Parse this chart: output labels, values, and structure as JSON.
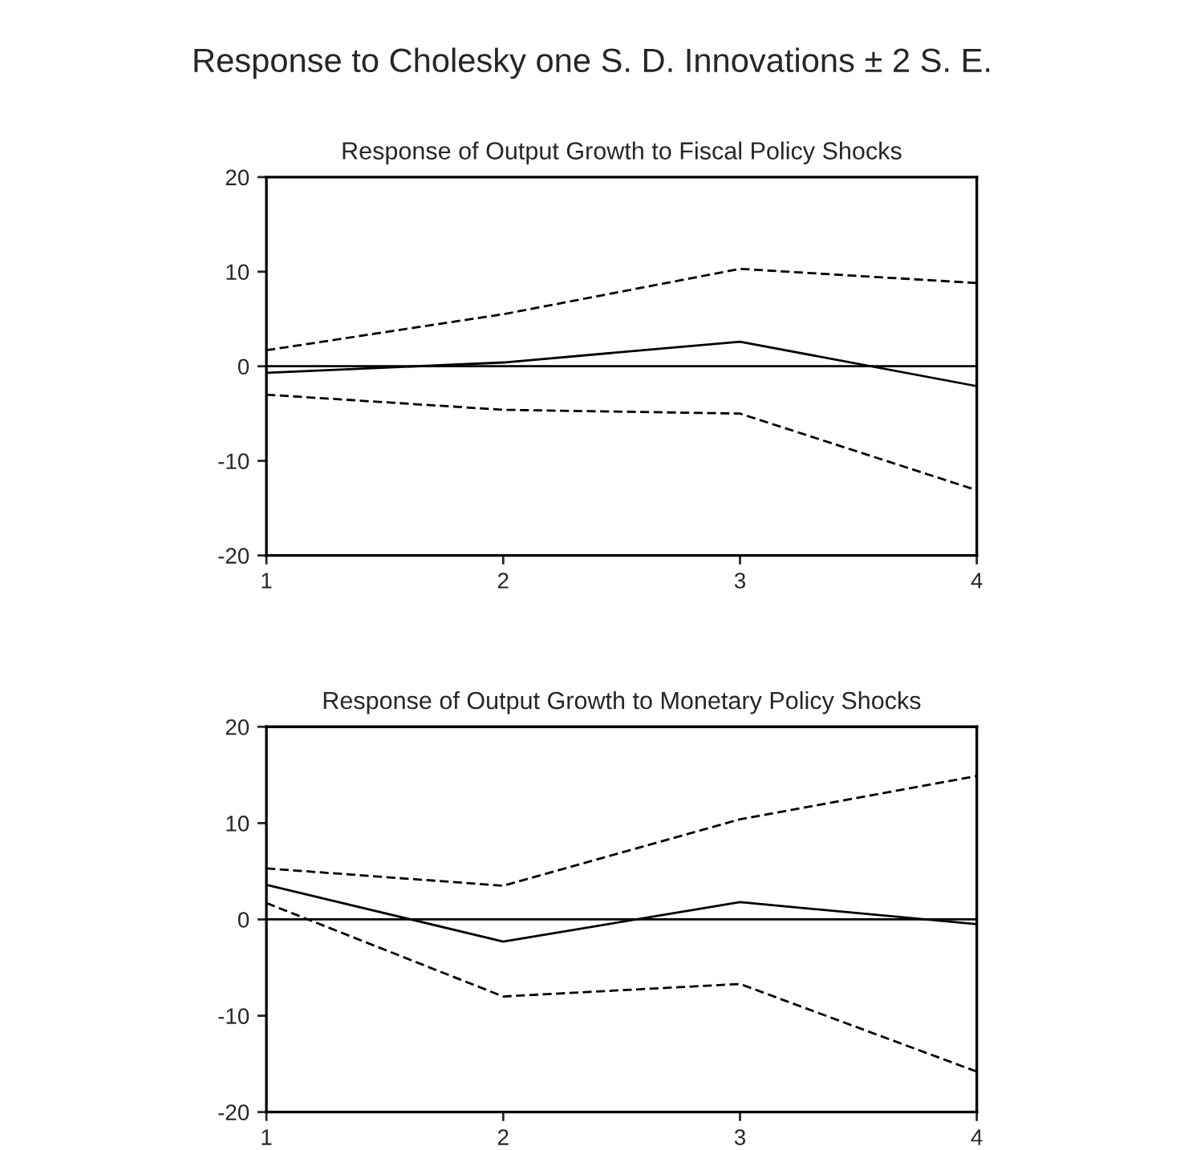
{
  "chart_data": [
    {
      "type": "line",
      "title": "Response of Output Growth to Fiscal Policy Shocks",
      "annotations": [
        "Response to Cholesky one S. D. Innovations ± 2 S. E."
      ],
      "x": [
        1,
        2,
        3,
        4
      ],
      "xlim": [
        1,
        4
      ],
      "xticks": [
        1,
        2,
        3,
        4
      ],
      "ylim": [
        -20,
        20
      ],
      "yticks": [
        -20,
        -10,
        0,
        10,
        20
      ],
      "grid": false,
      "ref_lines": [
        {
          "axis": "y",
          "value": 0,
          "color": "#000000"
        }
      ],
      "series": [
        {
          "color": "#000000",
          "line_style": "solid",
          "values": [
            -0.7,
            0.4,
            2.6,
            -2.1
          ]
        },
        {
          "color": "#000000",
          "line_style": "dashed",
          "values": [
            1.7,
            5.5,
            10.3,
            8.8
          ]
        },
        {
          "color": "#000000",
          "line_style": "dashed",
          "values": [
            -3.0,
            -4.6,
            -5.0,
            -13.1
          ]
        }
      ]
    },
    {
      "type": "line",
      "title": "Response of Output Growth to Monetary Policy Shocks",
      "x": [
        1,
        2,
        3,
        4
      ],
      "xlim": [
        1,
        4
      ],
      "xticks": [
        1,
        2,
        3,
        4
      ],
      "ylim": [
        -20,
        20
      ],
      "yticks": [
        -20,
        -10,
        0,
        10,
        20
      ],
      "grid": false,
      "ref_lines": [
        {
          "axis": "y",
          "value": 0,
          "color": "#000000"
        }
      ],
      "series": [
        {
          "color": "#000000",
          "line_style": "solid",
          "values": [
            3.6,
            -2.3,
            1.8,
            -0.5
          ]
        },
        {
          "color": "#000000",
          "line_style": "dashed",
          "values": [
            5.3,
            3.5,
            10.4,
            14.9
          ]
        },
        {
          "color": "#000000",
          "line_style": "dashed",
          "values": [
            1.7,
            -8.0,
            -6.7,
            -15.8
          ]
        }
      ]
    }
  ]
}
